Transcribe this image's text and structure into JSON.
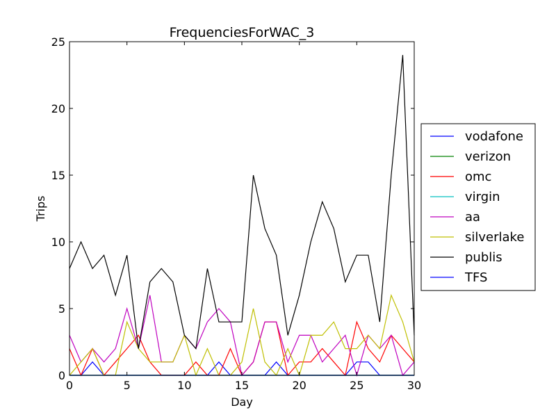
{
  "chart_data": {
    "type": "line",
    "title": "FrequenciesForWAC_3",
    "xlabel": "Day",
    "ylabel": "Trips",
    "xlim": [
      0,
      30
    ],
    "ylim": [
      0,
      25
    ],
    "xticks": [
      0,
      5,
      10,
      15,
      20,
      25,
      30
    ],
    "yticks": [
      0,
      5,
      10,
      15,
      20,
      25
    ],
    "grid": false,
    "legend_position": "right, outside plot",
    "x": [
      0,
      1,
      2,
      3,
      4,
      5,
      6,
      7,
      8,
      9,
      10,
      11,
      12,
      13,
      14,
      15,
      16,
      17,
      18,
      19,
      20,
      21,
      22,
      23,
      24,
      25,
      26,
      27,
      28,
      29,
      30
    ],
    "series": [
      {
        "name": "vodafone",
        "color": "#0000ff",
        "values": [
          0,
          0,
          1,
          0,
          0,
          0,
          0,
          0,
          0,
          0,
          0,
          0,
          0,
          1,
          0,
          0,
          0,
          0,
          1,
          0,
          0,
          0,
          0,
          0,
          0,
          1,
          1,
          0,
          0,
          0,
          0
        ]
      },
      {
        "name": "verizon",
        "color": "#008000",
        "values": [
          0,
          0,
          0,
          0,
          0,
          0,
          0,
          0,
          0,
          0,
          0,
          0,
          0,
          0,
          0,
          0,
          0,
          0,
          0,
          0,
          0,
          0,
          0,
          0,
          0,
          0,
          0,
          0,
          0,
          0,
          0
        ]
      },
      {
        "name": "omc",
        "color": "#ff0000",
        "values": [
          2,
          0,
          2,
          0,
          1,
          2,
          3,
          1,
          0,
          0,
          0,
          1,
          0,
          0,
          2,
          0,
          1,
          4,
          4,
          0,
          1,
          1,
          2,
          1,
          0,
          4,
          2,
          1,
          3,
          2,
          1
        ]
      },
      {
        "name": "virgin",
        "color": "#00bfbf",
        "values": [
          0,
          0,
          0,
          0,
          0,
          0,
          0,
          0,
          0,
          0,
          0,
          0,
          0,
          0,
          0,
          0,
          0,
          0,
          0,
          0,
          0,
          0,
          0,
          0,
          0,
          0,
          0,
          0,
          0,
          0,
          0
        ]
      },
      {
        "name": "aa",
        "color": "#bf00bf",
        "values": [
          3,
          1,
          2,
          1,
          2,
          5,
          2,
          6,
          1,
          1,
          3,
          2,
          4,
          5,
          4,
          0,
          1,
          4,
          4,
          1,
          3,
          3,
          1,
          2,
          3,
          0,
          3,
          2,
          3,
          0,
          1
        ]
      },
      {
        "name": "silverlake",
        "color": "#bfbf00",
        "values": [
          0,
          1,
          2,
          0,
          0,
          4,
          2,
          1,
          1,
          1,
          3,
          0,
          2,
          0,
          0,
          1,
          5,
          1,
          0,
          2,
          0,
          3,
          3,
          4,
          2,
          2,
          3,
          2,
          6,
          4,
          1
        ]
      },
      {
        "name": "publis",
        "color": "#000000",
        "values": [
          8,
          10,
          8,
          9,
          6,
          9,
          2,
          7,
          8,
          7,
          3,
          2,
          8,
          4,
          4,
          4,
          15,
          11,
          9,
          3,
          6,
          10,
          13,
          11,
          7,
          9,
          9,
          4,
          15,
          24,
          3
        ]
      },
      {
        "name": "TFS",
        "color": "#0000ff",
        "values": [
          0,
          0,
          0,
          0,
          0,
          0,
          0,
          0,
          0,
          0,
          0,
          0,
          0,
          0,
          0,
          0,
          0,
          0,
          0,
          0,
          0,
          0,
          0,
          0,
          0,
          0,
          0,
          0,
          0,
          0,
          0
        ]
      }
    ]
  }
}
